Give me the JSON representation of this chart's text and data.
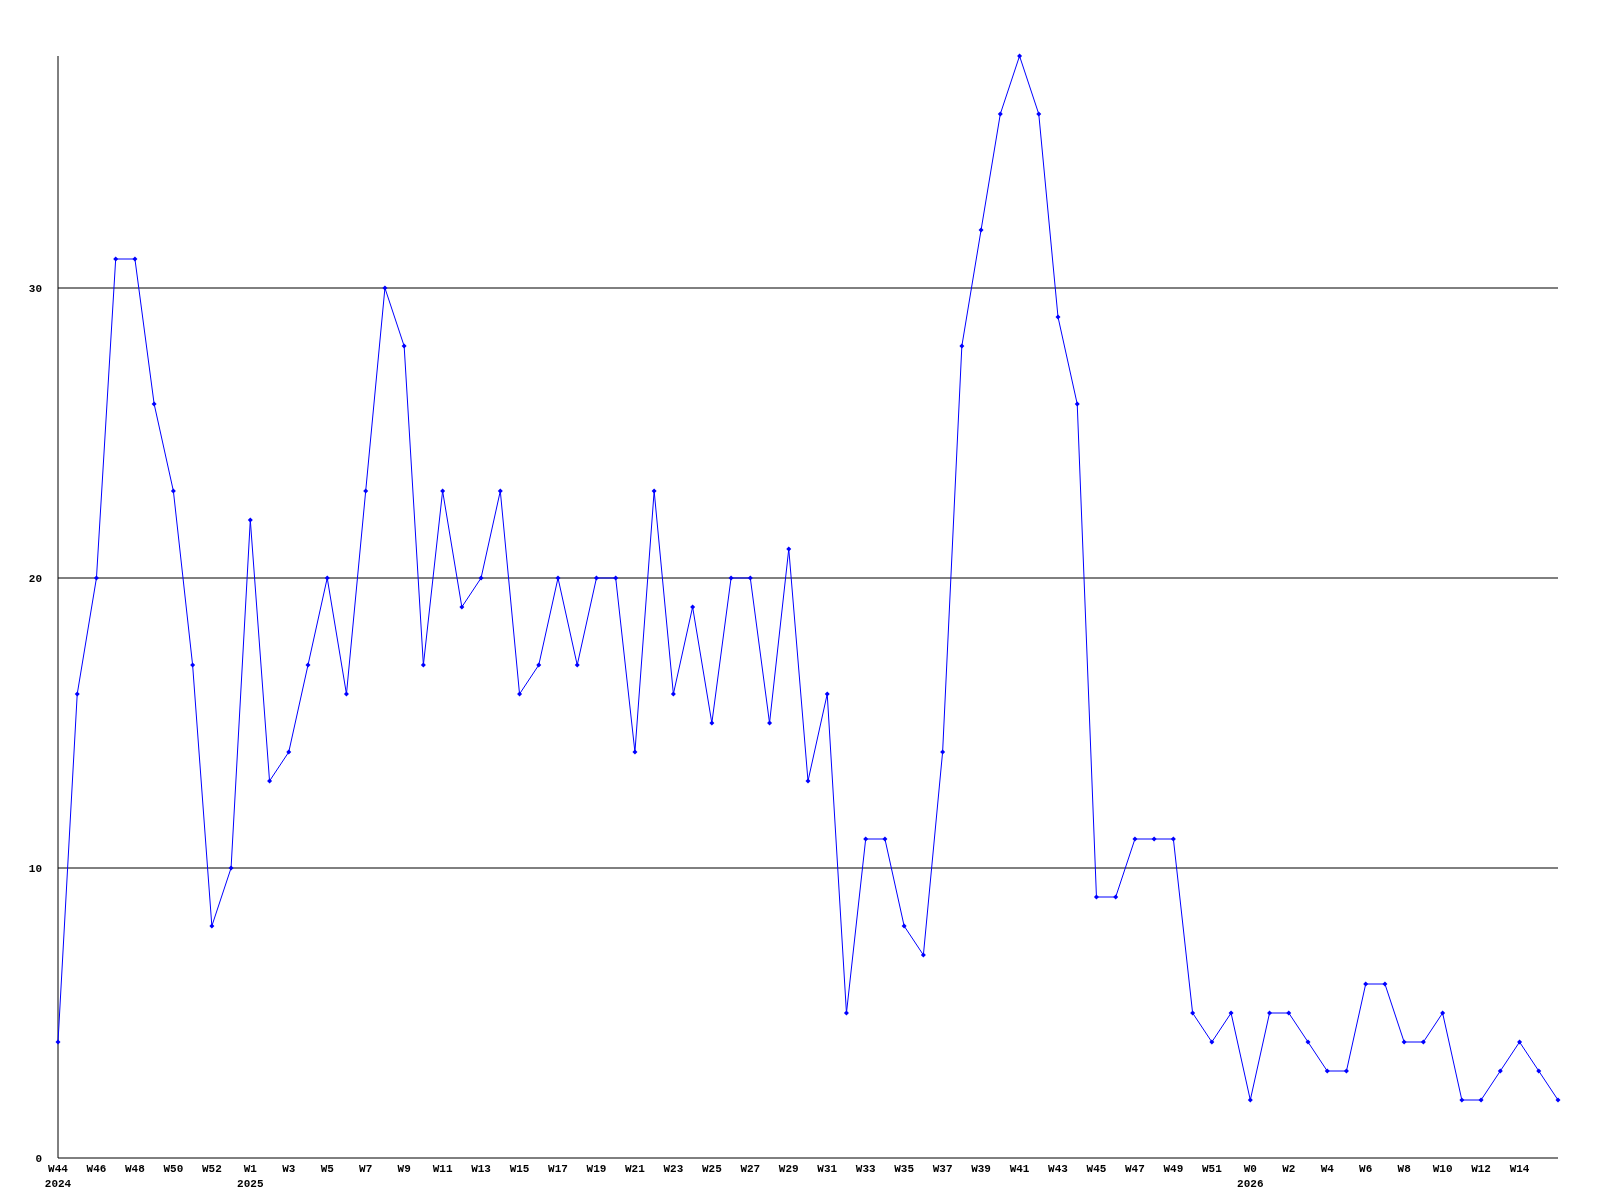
{
  "chart_data": {
    "type": "line",
    "categories": [
      "W44\n2024",
      null,
      "W46",
      null,
      "W48",
      null,
      "W50",
      null,
      "W52",
      null,
      "W1\n2025",
      null,
      "W3",
      null,
      "W5",
      null,
      "W7",
      null,
      "W9",
      null,
      "W11",
      null,
      "W13",
      null,
      "W15",
      null,
      "W17",
      null,
      "W19",
      null,
      "W21",
      null,
      "W23",
      null,
      "W25",
      null,
      "W27",
      null,
      "W29",
      null,
      "W31",
      null,
      "W33",
      null,
      "W35",
      null,
      "W37",
      null,
      "W39",
      null,
      "W41",
      null,
      "W43",
      null,
      "W45",
      null,
      "W47",
      null,
      "W49",
      null,
      "W51",
      null,
      "W0\n2026",
      null,
      "W2",
      null,
      "W4",
      null,
      "W6",
      null,
      "W8",
      null,
      "W10",
      null,
      "W12",
      null,
      "W14",
      null,
      null
    ],
    "series": [
      {
        "color": "#0000ff",
        "values": [
          4,
          16,
          20,
          31,
          31,
          26,
          23,
          17,
          8,
          10,
          22,
          13,
          14,
          17,
          20,
          16,
          23,
          30,
          28,
          17,
          23,
          19,
          20,
          23,
          16,
          17,
          20,
          17,
          20,
          20,
          14,
          23,
          16,
          19,
          15,
          20,
          20,
          15,
          21,
          13,
          16,
          5,
          11,
          11,
          8,
          7,
          14,
          28,
          32,
          36,
          38,
          36,
          29,
          26,
          9,
          9,
          11,
          11,
          11,
          5,
          4,
          5,
          2,
          5,
          5,
          4,
          3,
          3,
          6,
          6,
          4,
          4,
          5,
          2,
          2,
          3,
          4,
          3,
          2
        ]
      }
    ],
    "ylim": [
      0,
      38
    ],
    "yticks": [
      0,
      10,
      20,
      30
    ],
    "grid": "y",
    "marker": "diamond",
    "line_style": "solid"
  }
}
